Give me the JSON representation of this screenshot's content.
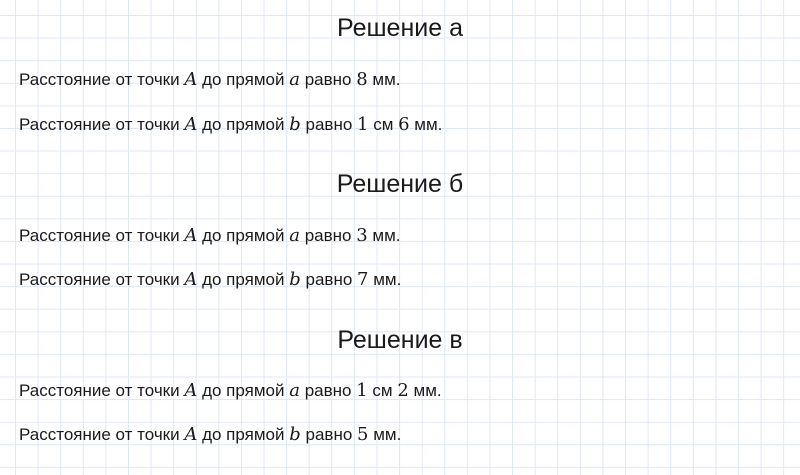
{
  "sections": [
    {
      "title": "Решение а",
      "lines": [
        {
          "prefix": "Расстояние от точки",
          "point": "A",
          "mid": "до прямой",
          "line": "a",
          "eq": "равно",
          "value": [
            {
              "t": "8",
              "math": true
            },
            {
              "t": " мм.",
              "math": false
            }
          ]
        },
        {
          "prefix": "Расстояние от точки",
          "point": "A",
          "mid": "до прямой",
          "line": "b",
          "eq": "равно",
          "value": [
            {
              "t": "1",
              "math": true
            },
            {
              "t": " см ",
              "math": false
            },
            {
              "t": "6",
              "math": true
            },
            {
              "t": " мм.",
              "math": false
            }
          ]
        }
      ]
    },
    {
      "title": "Решение б",
      "lines": [
        {
          "prefix": "Расстояние от точки",
          "point": "A",
          "mid": "до прямой",
          "line": "a",
          "eq": "равно",
          "value": [
            {
              "t": "3",
              "math": true
            },
            {
              "t": " мм.",
              "math": false
            }
          ]
        },
        {
          "prefix": "Расстояние от точки",
          "point": "A",
          "mid": "до прямой",
          "line": "b",
          "eq": "равно",
          "value": [
            {
              "t": "7",
              "math": true
            },
            {
              "t": " мм.",
              "math": false
            }
          ]
        }
      ]
    },
    {
      "title": "Решение в",
      "lines": [
        {
          "prefix": "Расстояние от точки",
          "point": "A",
          "mid": "до прямой",
          "line": "a",
          "eq": "равно",
          "value": [
            {
              "t": "1",
              "math": true
            },
            {
              "t": " см ",
              "math": false
            },
            {
              "t": "2",
              "math": true
            },
            {
              "t": " мм.",
              "math": false
            }
          ]
        },
        {
          "prefix": "Расстояние от точки",
          "point": "A",
          "mid": "до прямой",
          "line": "b",
          "eq": "равно",
          "value": [
            {
              "t": "5",
              "math": true
            },
            {
              "t": " мм.",
              "math": false
            }
          ]
        }
      ]
    }
  ],
  "colors": {
    "grid": "#dfe7f5",
    "text": "#1a1a1a"
  }
}
